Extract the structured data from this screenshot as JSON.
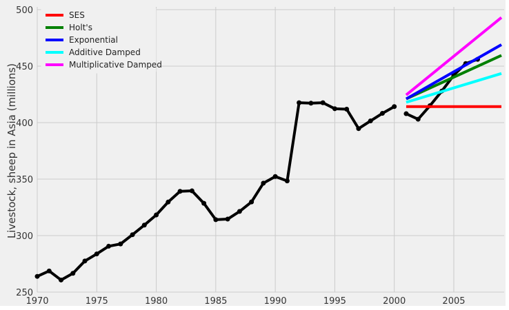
{
  "chart_data": {
    "type": "line",
    "title": "",
    "xlabel": "",
    "ylabel": "Livestock, sheep in Asia (millions)",
    "xlim": [
      1970,
      2009
    ],
    "ylim": [
      250,
      500
    ],
    "xticks": [
      "1970",
      "1975",
      "1980",
      "1985",
      "1990",
      "1995",
      "2000",
      "2005"
    ],
    "yticks": [
      "250",
      "300",
      "350",
      "400",
      "450",
      "500"
    ],
    "grid": true,
    "legend_position": "top-left",
    "observed": {
      "color": "#000000",
      "train": {
        "x": [
          1970,
          1971,
          1972,
          1973,
          1974,
          1975,
          1976,
          1977,
          1978,
          1979,
          1980,
          1981,
          1982,
          1983,
          1984,
          1985,
          1986,
          1987,
          1988,
          1989,
          1990,
          1991,
          1992,
          1993,
          1994,
          1995,
          1996,
          1997,
          1998,
          1999,
          2000
        ],
        "y": [
          263.9,
          268.7,
          260.7,
          266.6,
          277.5,
          283.8,
          290.6,
          292.6,
          300.8,
          309.3,
          318.3,
          329.7,
          339.2,
          339.6,
          328.6,
          314.1,
          314.6,
          321.4,
          329.8,
          346.4,
          352.3,
          348.4,
          417.6,
          417.2,
          417.6,
          412.3,
          411.9,
          394.7,
          401.5,
          408.2,
          414.2
        ]
      },
      "test": {
        "x": [
          2001,
          2002,
          2003,
          2004,
          2005,
          2006,
          2007
        ],
        "y": [
          407.9,
          403.0,
          415.0,
          428.0,
          442.0,
          452.3,
          456.0
        ]
      }
    },
    "series": [
      {
        "name": "SES",
        "color": "#ff0000",
        "x": [
          2001,
          2009
        ],
        "y": [
          414.2,
          414.2
        ]
      },
      {
        "name": "Holt's",
        "color": "#008000",
        "x": [
          2001,
          2009
        ],
        "y": [
          421.0,
          459.5
        ]
      },
      {
        "name": "Exponential",
        "color": "#0000ff",
        "x": [
          2001,
          2009
        ],
        "y": [
          421.0,
          469.0
        ]
      },
      {
        "name": "Additive Damped",
        "color": "#00ffff",
        "x": [
          2001,
          2009
        ],
        "y": [
          418.0,
          443.5
        ]
      },
      {
        "name": "Multiplicative Damped",
        "color": "#ff00ff",
        "x": [
          2001,
          2009
        ],
        "y": [
          424.5,
          493.0
        ]
      }
    ]
  }
}
